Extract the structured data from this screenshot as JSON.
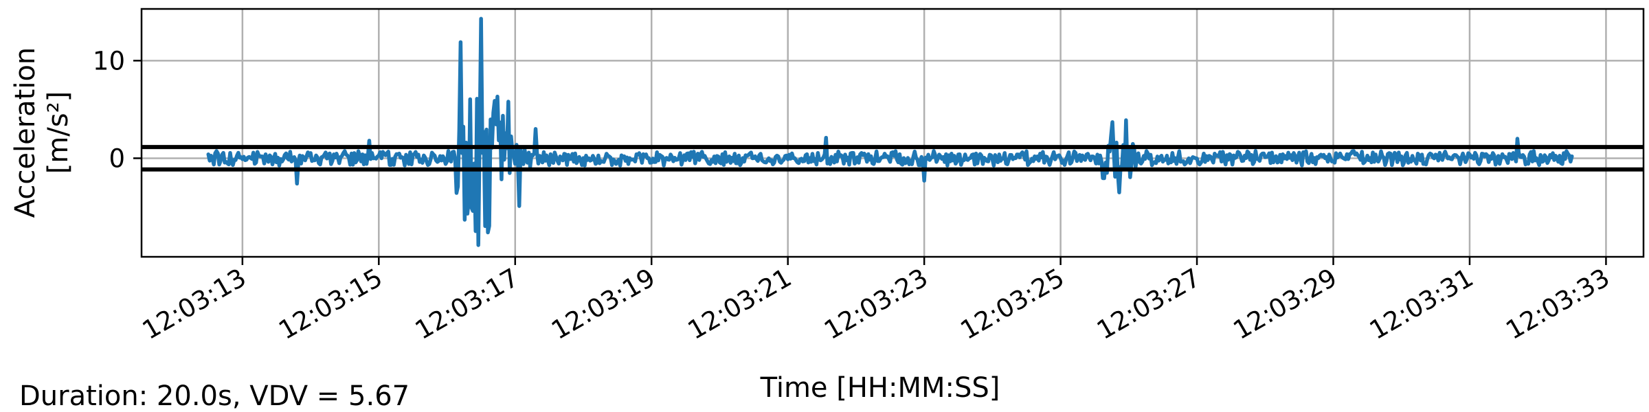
{
  "chart_data": {
    "type": "line",
    "xlabel": "Time [HH:MM:SS]",
    "ylabel_line1": "Acceleration",
    "ylabel_line2": "[m/s²]",
    "x_ticks": [
      "12:03:13",
      "12:03:15",
      "12:03:17",
      "12:03:19",
      "12:03:21",
      "12:03:23",
      "12:03:25",
      "12:03:27",
      "12:03:29",
      "12:03:31",
      "12:03:33"
    ],
    "y_ticks": [
      0,
      10
    ],
    "xlim": [
      "12:03:11.52",
      "12:03:33.55"
    ],
    "ylim": [
      -10.1,
      15.3
    ],
    "grid": true,
    "series": [
      {
        "color": "#1f77b4",
        "x_start": "12:03:12.50",
        "x_end": "12:03:32.50",
        "sample_interval_s": 0.02,
        "description_points": [
          {
            "t": "12:03:12.50",
            "y": 0.4
          },
          {
            "t": "12:03:13.80",
            "y": -2.6
          },
          {
            "t": "12:03:14.85",
            "y": 1.8
          },
          {
            "t": "12:03:16.20",
            "y": 11.9
          },
          {
            "t": "12:03:16.25",
            "y": -6.3
          },
          {
            "t": "12:03:16.45",
            "y": -8.9
          },
          {
            "t": "12:03:16.50",
            "y": 14.3
          },
          {
            "t": "12:03:16.60",
            "y": -7.6
          },
          {
            "t": "12:03:16.90",
            "y": 5.8
          },
          {
            "t": "12:03:17.05",
            "y": -4.9
          },
          {
            "t": "12:03:17.30",
            "y": 3.0
          },
          {
            "t": "12:03:21.55",
            "y": 2.1
          },
          {
            "t": "12:03:23.00",
            "y": -2.3
          },
          {
            "t": "12:03:25.75",
            "y": 3.7
          },
          {
            "t": "12:03:25.95",
            "y": 3.9
          },
          {
            "t": "12:03:25.85",
            "y": -3.5
          },
          {
            "t": "12:03:31.70",
            "y": 2.0
          },
          {
            "t": "12:03:32.50",
            "y": 0.2
          }
        ]
      }
    ],
    "threshold_lines": [
      1.15,
      -1.15
    ]
  },
  "footer": "Duration: 20.0s, VDV = 5.67"
}
